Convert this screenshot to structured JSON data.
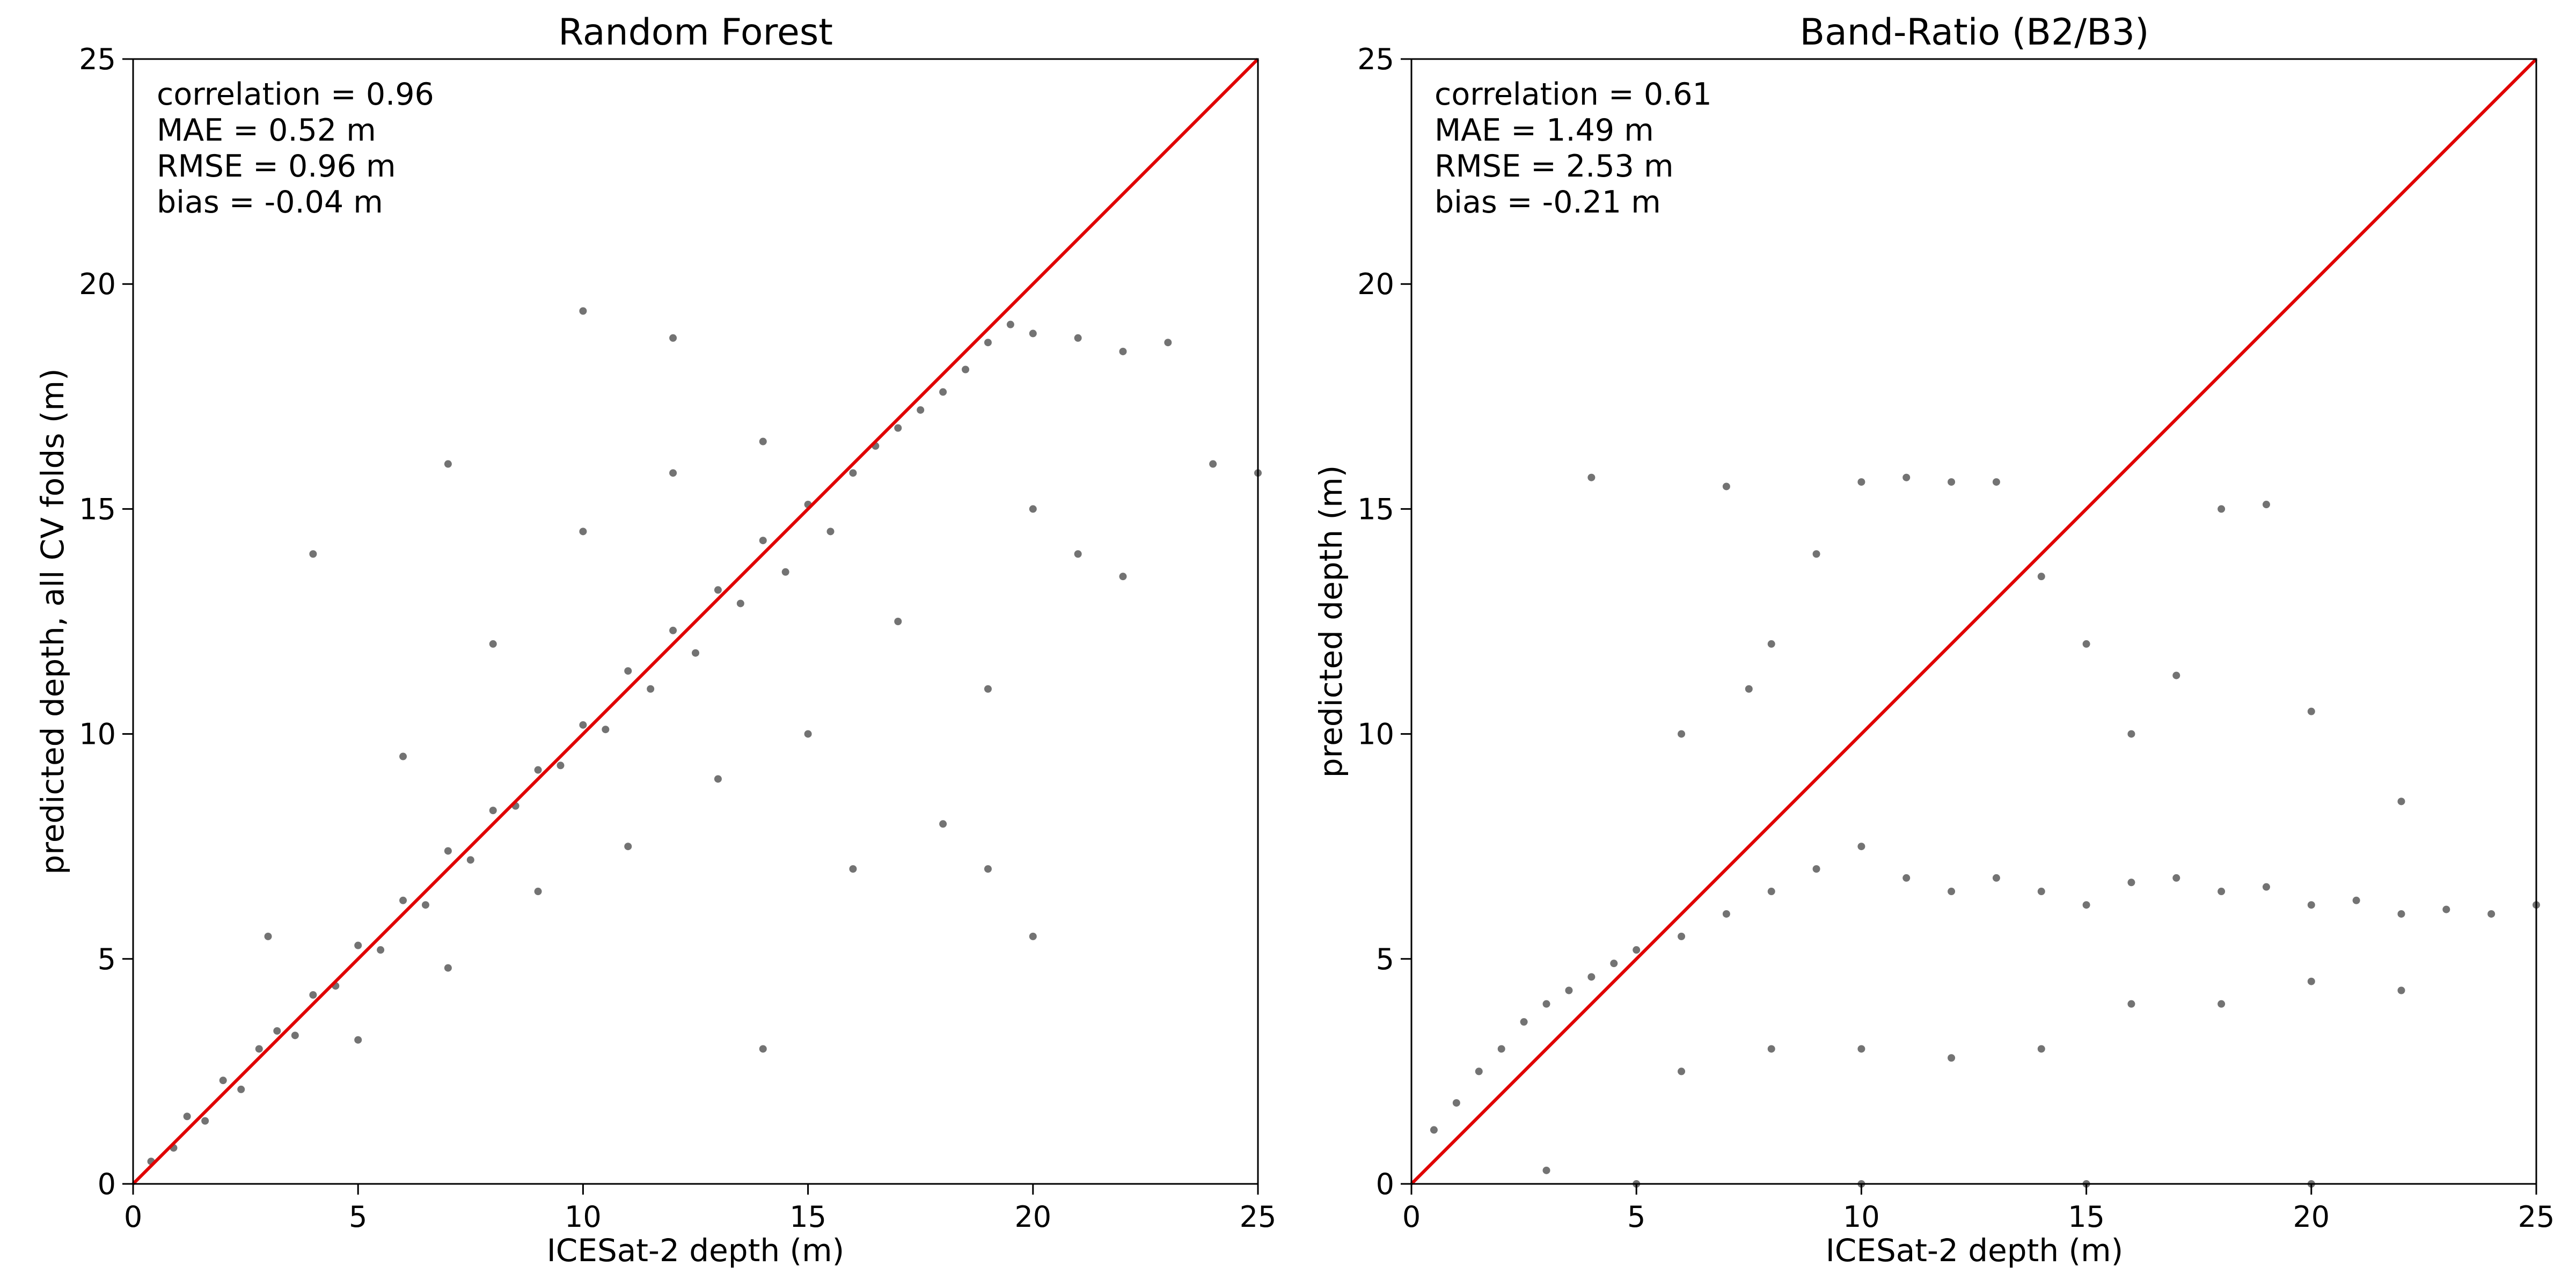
{
  "chart_data": [
    {
      "type": "scatter",
      "title": "Random Forest",
      "xlabel": "ICESat-2 depth (m)",
      "ylabel": "predicted depth, all CV folds (m)",
      "xlim": [
        0,
        25
      ],
      "ylim": [
        0,
        25
      ],
      "xticks": [
        "0",
        "5",
        "10",
        "15",
        "20",
        "25"
      ],
      "yticks": [
        "0",
        "5",
        "10",
        "15",
        "20",
        "25"
      ],
      "grid": false,
      "stats": [
        "correlation = 0.96",
        "MAE = 0.52 m",
        "RMSE = 0.96 m",
        "bias = -0.04 m"
      ],
      "reference_line": {
        "from": [
          0,
          0
        ],
        "to": [
          25,
          25
        ],
        "color": "#e00000"
      },
      "point_color": "#000000",
      "series": [
        {
          "values": [
            [
              0.4,
              0.5
            ],
            [
              0.9,
              0.8
            ],
            [
              1.2,
              1.5
            ],
            [
              1.6,
              1.4
            ],
            [
              2.0,
              2.3
            ],
            [
              2.4,
              2.1
            ],
            [
              2.8,
              3.0
            ],
            [
              3.2,
              3.4
            ],
            [
              3.6,
              3.3
            ],
            [
              4.0,
              4.2
            ],
            [
              4.5,
              4.4
            ],
            [
              5.0,
              5.3
            ],
            [
              5.5,
              5.2
            ],
            [
              6.0,
              6.3
            ],
            [
              6.5,
              6.2
            ],
            [
              7.0,
              7.4
            ],
            [
              7.5,
              7.2
            ],
            [
              8.0,
              8.3
            ],
            [
              8.5,
              8.4
            ],
            [
              9.0,
              9.2
            ],
            [
              9.5,
              9.3
            ],
            [
              10.0,
              10.2
            ],
            [
              10.5,
              10.1
            ],
            [
              11.0,
              11.4
            ],
            [
              11.5,
              11.0
            ],
            [
              12.0,
              12.3
            ],
            [
              12.5,
              11.8
            ],
            [
              13.0,
              13.2
            ],
            [
              13.5,
              12.9
            ],
            [
              14.0,
              14.3
            ],
            [
              14.5,
              13.6
            ],
            [
              15.0,
              15.1
            ],
            [
              15.5,
              14.5
            ],
            [
              16.0,
              15.8
            ],
            [
              16.5,
              16.4
            ],
            [
              17.0,
              16.8
            ],
            [
              17.5,
              17.2
            ],
            [
              18.0,
              17.6
            ],
            [
              18.5,
              18.1
            ],
            [
              19.0,
              18.7
            ],
            [
              19.5,
              19.1
            ],
            [
              20.0,
              18.9
            ],
            [
              21.0,
              18.8
            ],
            [
              22.0,
              18.5
            ],
            [
              23.0,
              18.7
            ],
            [
              24.0,
              16.0
            ],
            [
              25.0,
              15.8
            ],
            [
              3.0,
              5.5
            ],
            [
              5.0,
              3.2
            ],
            [
              6.0,
              9.5
            ],
            [
              7.0,
              4.8
            ],
            [
              8.0,
              12.0
            ],
            [
              9.0,
              6.5
            ],
            [
              10.0,
              14.5
            ],
            [
              11.0,
              7.5
            ],
            [
              12.0,
              15.8
            ],
            [
              13.0,
              9.0
            ],
            [
              14.0,
              16.5
            ],
            [
              15.0,
              10.0
            ],
            [
              16.0,
              7.0
            ],
            [
              17.0,
              12.5
            ],
            [
              18.0,
              8.0
            ],
            [
              19.0,
              11.0
            ],
            [
              20.0,
              15.0
            ],
            [
              21.0,
              14.0
            ],
            [
              22.0,
              13.5
            ],
            [
              4.0,
              14.0
            ],
            [
              7.0,
              16.0
            ],
            [
              10.0,
              19.4
            ],
            [
              12.0,
              18.8
            ],
            [
              14.0,
              3.0
            ],
            [
              20.0,
              5.5
            ],
            [
              19.0,
              7.0
            ]
          ]
        }
      ]
    },
    {
      "type": "scatter",
      "title": "Band-Ratio (B2/B3)",
      "xlabel": "ICESat-2 depth (m)",
      "ylabel": "predicted depth (m)",
      "xlim": [
        0,
        25
      ],
      "ylim": [
        0,
        25
      ],
      "xticks": [
        "0",
        "5",
        "10",
        "15",
        "20",
        "25"
      ],
      "yticks": [
        "0",
        "5",
        "10",
        "15",
        "20",
        "25"
      ],
      "grid": false,
      "stats": [
        "correlation = 0.61",
        "MAE = 1.49 m",
        "RMSE = 2.53 m",
        "bias = -0.21 m"
      ],
      "reference_line": {
        "from": [
          0,
          0
        ],
        "to": [
          25,
          25
        ],
        "color": "#e00000"
      },
      "point_color": "#000000",
      "series": [
        {
          "values": [
            [
              0.5,
              1.2
            ],
            [
              1.0,
              1.8
            ],
            [
              1.5,
              2.5
            ],
            [
              2.0,
              3.0
            ],
            [
              2.5,
              3.6
            ],
            [
              3.0,
              4.0
            ],
            [
              3.5,
              4.3
            ],
            [
              4.0,
              4.6
            ],
            [
              4.5,
              4.9
            ],
            [
              5.0,
              5.2
            ],
            [
              6.0,
              5.5
            ],
            [
              7.0,
              6.0
            ],
            [
              8.0,
              6.5
            ],
            [
              9.0,
              7.0
            ],
            [
              10.0,
              7.5
            ],
            [
              11.0,
              6.8
            ],
            [
              12.0,
              6.5
            ],
            [
              13.0,
              6.8
            ],
            [
              14.0,
              6.5
            ],
            [
              15.0,
              6.2
            ],
            [
              16.0,
              6.7
            ],
            [
              17.0,
              6.8
            ],
            [
              18.0,
              6.5
            ],
            [
              19.0,
              6.6
            ],
            [
              20.0,
              6.2
            ],
            [
              21.0,
              6.3
            ],
            [
              22.0,
              6.0
            ],
            [
              23.0,
              6.1
            ],
            [
              24.0,
              6.0
            ],
            [
              25.0,
              6.2
            ],
            [
              6.0,
              2.5
            ],
            [
              8.0,
              3.0
            ],
            [
              10.0,
              3.0
            ],
            [
              12.0,
              2.8
            ],
            [
              14.0,
              3.0
            ],
            [
              16.0,
              4.0
            ],
            [
              18.0,
              4.0
            ],
            [
              20.0,
              4.5
            ],
            [
              22.0,
              4.3
            ],
            [
              8.0,
              12.0
            ],
            [
              9.0,
              14.0
            ],
            [
              10.0,
              15.6
            ],
            [
              11.0,
              15.7
            ],
            [
              12.0,
              15.6
            ],
            [
              7.0,
              15.5
            ],
            [
              6.0,
              10.0
            ],
            [
              7.5,
              11.0
            ],
            [
              15.0,
              12.0
            ],
            [
              18.0,
              15.0
            ],
            [
              19.0,
              15.1
            ],
            [
              20.0,
              10.5
            ],
            [
              22.0,
              8.5
            ],
            [
              17.0,
              11.3
            ],
            [
              16.0,
              10.0
            ],
            [
              4.0,
              15.7
            ],
            [
              13.0,
              15.6
            ],
            [
              14.0,
              13.5
            ],
            [
              10.0,
              0.0
            ],
            [
              15.0,
              0.0
            ],
            [
              20.0,
              0.0
            ],
            [
              5.0,
              0.0
            ],
            [
              3.0,
              0.3
            ]
          ]
        }
      ]
    }
  ]
}
